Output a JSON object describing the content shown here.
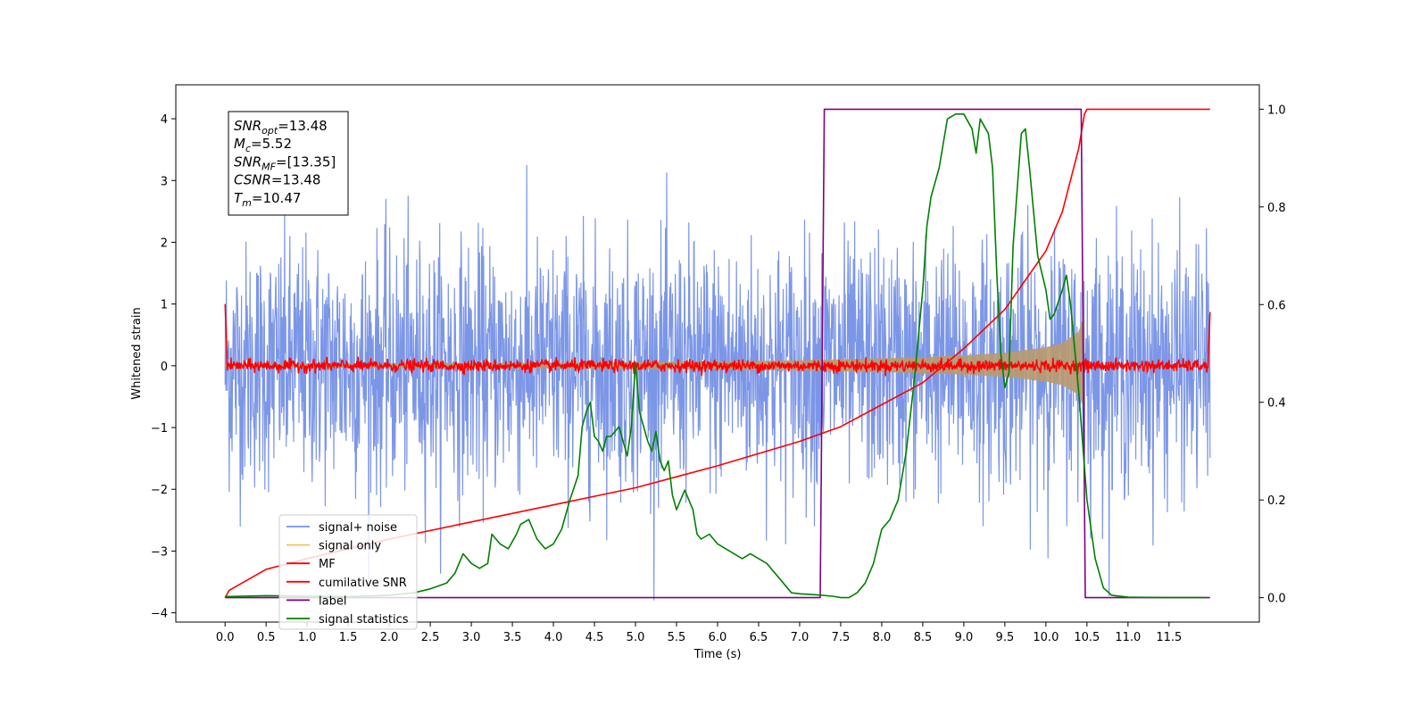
{
  "chart_data": {
    "type": "line",
    "xlabel": "Time (s)",
    "ylabel": "Whitened strain",
    "xlim": [
      -0.6,
      12.6
    ],
    "ylim_left": [
      -4.15,
      4.55
    ],
    "ylim_right": [
      -0.05,
      1.05
    ],
    "x_ticks": [
      0.0,
      0.5,
      1.0,
      1.5,
      2.0,
      2.5,
      3.0,
      3.5,
      4.0,
      4.5,
      5.0,
      5.5,
      6.0,
      6.5,
      7.0,
      7.5,
      8.0,
      8.5,
      9.0,
      9.5,
      10.0,
      10.5,
      11.0,
      11.5
    ],
    "x_tick_labels": [
      "0.0",
      "0.5",
      "1.0",
      "1.5",
      "2.0",
      "2.5",
      "3.0",
      "3.5",
      "4.0",
      "4.5",
      "5.0",
      "5.5",
      "6.0",
      "6.5",
      "7.0",
      "7.5",
      "8.0",
      "8.5",
      "9.0",
      "9.5",
      "10.0",
      "10.5",
      "11.0",
      "11.5"
    ],
    "y_left_ticks": [
      -4,
      -3,
      -2,
      -1,
      0,
      1,
      2,
      3,
      4
    ],
    "y_left_tick_labels": [
      "−4",
      "−3",
      "−2",
      "−1",
      "0",
      "1",
      "2",
      "3",
      "4"
    ],
    "y_right_ticks": [
      0.0,
      0.2,
      0.4,
      0.6,
      0.8,
      1.0
    ],
    "y_right_tick_labels": [
      "0.0",
      "0.2",
      "0.4",
      "0.6",
      "0.8",
      "1.0"
    ],
    "grid": false,
    "legend_position": "bottom-left",
    "annotation": {
      "lines": [
        {
          "sym": "SNR",
          "sub": "opt",
          "value": "=13.48"
        },
        {
          "sym": "M",
          "sub": "c",
          "value": "=5.52"
        },
        {
          "sym": "SNR",
          "sub": "MF",
          "value": "=[13.35]"
        },
        {
          "sym": "CSNR",
          "sub": "",
          "value": "=13.48"
        },
        {
          "sym": "T",
          "sub": "m",
          "value": "=10.47"
        }
      ]
    },
    "series": [
      {
        "name": "signal+ noise",
        "axis": "left",
        "color": "#7590e6",
        "kind": "noise_band",
        "x_range": [
          0.0,
          12.0
        ],
        "typical_amplitude": 1.6,
        "peak_max": 4.1,
        "peak_min": -3.8
      },
      {
        "name": "signal only",
        "axis": "left",
        "color": "#f5c060",
        "kind": "chirp_envelope",
        "x": [
          0.0,
          2.0,
          4.0,
          6.0,
          7.0,
          8.0,
          8.5,
          9.0,
          9.5,
          10.0,
          10.2,
          10.4,
          10.47
        ],
        "envelope": [
          0.03,
          0.04,
          0.05,
          0.07,
          0.09,
          0.12,
          0.14,
          0.17,
          0.21,
          0.3,
          0.37,
          0.55,
          0.85
        ]
      },
      {
        "name": "MF",
        "axis": "left",
        "color": "#ff0000",
        "kind": "noise_band",
        "x_range": [
          0.0,
          12.0
        ],
        "typical_amplitude": 0.09,
        "edge_values": [
          1.0,
          0.87
        ]
      },
      {
        "name": "cumilative SNR",
        "axis": "right",
        "color": "#ff0000",
        "x": [
          0.0,
          0.05,
          0.5,
          1.0,
          2.0,
          3.0,
          4.0,
          5.0,
          6.0,
          7.0,
          7.5,
          8.0,
          8.5,
          9.0,
          9.5,
          10.0,
          10.2,
          10.4,
          10.47,
          10.5,
          12.0
        ],
        "values": [
          0.0,
          0.015,
          0.058,
          0.08,
          0.12,
          0.155,
          0.19,
          0.225,
          0.27,
          0.32,
          0.35,
          0.395,
          0.44,
          0.51,
          0.59,
          0.71,
          0.79,
          0.92,
          0.99,
          1.0,
          1.0
        ]
      },
      {
        "name": "label",
        "axis": "right",
        "color": "#800080",
        "x": [
          0.0,
          7.25,
          7.3,
          10.43,
          10.48,
          12.0
        ],
        "values": [
          0.0,
          0.0,
          1.0,
          1.0,
          0.0,
          0.0
        ]
      },
      {
        "name": "signal statistics",
        "axis": "right",
        "color": "#008000",
        "x": [
          0.0,
          0.5,
          1.0,
          1.5,
          2.0,
          2.3,
          2.5,
          2.7,
          2.8,
          2.9,
          3.0,
          3.1,
          3.2,
          3.25,
          3.35,
          3.45,
          3.55,
          3.6,
          3.7,
          3.8,
          3.9,
          4.0,
          4.1,
          4.2,
          4.3,
          4.35,
          4.4,
          4.45,
          4.5,
          4.55,
          4.6,
          4.65,
          4.7,
          4.8,
          4.9,
          4.95,
          5.0,
          5.05,
          5.1,
          5.15,
          5.2,
          5.25,
          5.3,
          5.35,
          5.4,
          5.45,
          5.5,
          5.6,
          5.7,
          5.75,
          5.8,
          5.9,
          6.0,
          6.1,
          6.2,
          6.3,
          6.4,
          6.5,
          6.6,
          6.7,
          6.8,
          6.9,
          7.0,
          7.2,
          7.4,
          7.5,
          7.6,
          7.7,
          7.8,
          7.9,
          8.0,
          8.1,
          8.2,
          8.3,
          8.4,
          8.5,
          8.55,
          8.6,
          8.7,
          8.8,
          8.9,
          9.0,
          9.1,
          9.15,
          9.2,
          9.3,
          9.35,
          9.4,
          9.45,
          9.5,
          9.55,
          9.6,
          9.7,
          9.75,
          9.8,
          9.9,
          10.0,
          10.05,
          10.1,
          10.2,
          10.25,
          10.3,
          10.4,
          10.5,
          10.6,
          10.7,
          10.8,
          11.0,
          11.5,
          11.95
        ],
        "values": [
          0.002,
          0.004,
          0.003,
          0.002,
          0.005,
          0.01,
          0.018,
          0.03,
          0.05,
          0.09,
          0.07,
          0.06,
          0.07,
          0.13,
          0.11,
          0.1,
          0.13,
          0.15,
          0.16,
          0.12,
          0.1,
          0.11,
          0.14,
          0.2,
          0.25,
          0.35,
          0.38,
          0.4,
          0.33,
          0.32,
          0.3,
          0.33,
          0.33,
          0.35,
          0.29,
          0.35,
          0.48,
          0.38,
          0.35,
          0.32,
          0.3,
          0.34,
          0.28,
          0.26,
          0.28,
          0.21,
          0.18,
          0.22,
          0.18,
          0.13,
          0.12,
          0.13,
          0.11,
          0.1,
          0.09,
          0.08,
          0.09,
          0.08,
          0.07,
          0.05,
          0.03,
          0.01,
          0.008,
          0.006,
          0.003,
          0.0,
          0.0,
          0.01,
          0.03,
          0.07,
          0.14,
          0.16,
          0.2,
          0.3,
          0.45,
          0.63,
          0.76,
          0.82,
          0.88,
          0.98,
          0.99,
          0.99,
          0.96,
          0.91,
          0.98,
          0.95,
          0.88,
          0.67,
          0.5,
          0.43,
          0.46,
          0.72,
          0.95,
          0.96,
          0.88,
          0.7,
          0.63,
          0.57,
          0.58,
          0.63,
          0.66,
          0.6,
          0.42,
          0.2,
          0.08,
          0.02,
          0.005,
          0.001,
          0.0,
          0.0
        ]
      }
    ]
  }
}
